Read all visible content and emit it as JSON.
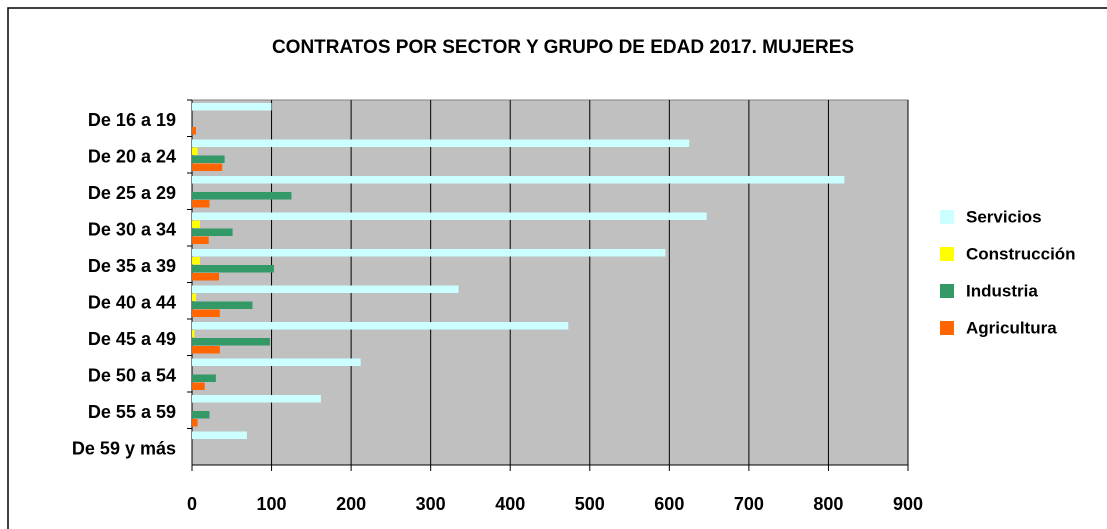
{
  "chart_data": {
    "type": "bar",
    "orientation": "horizontal",
    "title": "CONTRATOS POR SECTOR Y GRUPO DE EDAD 2017. MUJERES",
    "categories": [
      "De 16 a 19",
      "De 20 a 24",
      "De 25 a 29",
      "De 30 a 34",
      "De 35 a 39",
      "De 40 a 44",
      "De 45 a 49",
      "De 50 a 54",
      "De 55 a 59",
      "De 59 y más"
    ],
    "series": [
      {
        "name": "Servicios",
        "color": "#ccffff",
        "values": [
          100,
          625,
          820,
          647,
          595,
          335,
          473,
          212,
          162,
          69
        ]
      },
      {
        "name": "Construcción",
        "color": "#ffff00",
        "values": [
          0,
          7,
          0,
          10,
          10,
          5,
          3,
          0,
          0,
          0
        ]
      },
      {
        "name": "Industria",
        "color": "#339966",
        "values": [
          0,
          41,
          125,
          51,
          103,
          76,
          98,
          30,
          22,
          0
        ]
      },
      {
        "name": "Agricultura",
        "color": "#ff6600",
        "values": [
          5,
          38,
          22,
          21,
          34,
          35,
          35,
          16,
          7,
          0
        ]
      }
    ],
    "xlim": [
      0,
      900
    ],
    "xticks": [
      0,
      100,
      200,
      300,
      400,
      500,
      600,
      700,
      800,
      900
    ],
    "grid": true,
    "legend": "right"
  }
}
